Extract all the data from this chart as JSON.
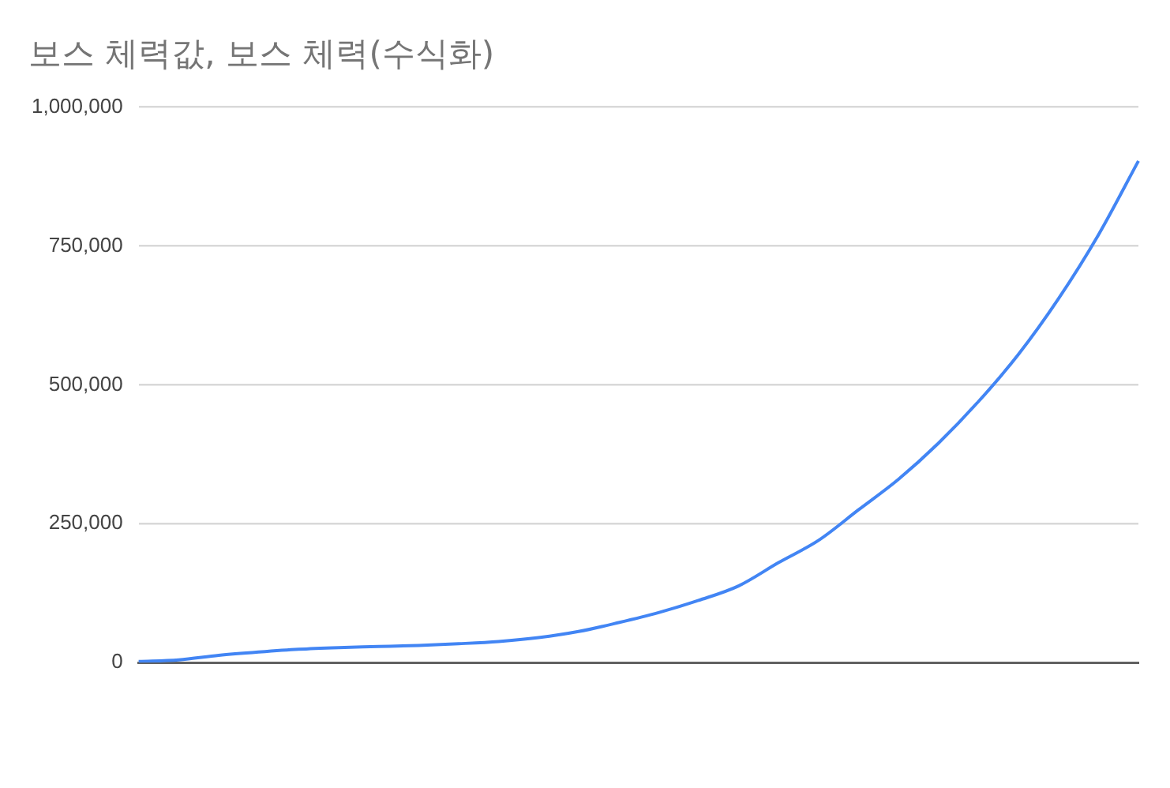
{
  "chart_data": {
    "type": "line",
    "title": "보스 체력값, 보스 체력(수식화)",
    "categories": [
      null,
      null,
      null,
      null,
      null,
      null,
      null,
      null,
      null,
      null,
      null,
      null,
      null,
      null,
      null,
      null,
      null,
      null,
      null,
      null,
      null,
      null,
      null,
      null,
      null,
      null
    ],
    "series": [
      {
        "color": "#4285f4",
        "values": [
          2000,
          5000,
          13000,
          19000,
          24000,
          27000,
          29000,
          31000,
          34000,
          38000,
          45000,
          56000,
          72000,
          90000,
          112000,
          138000,
          180000,
          220000,
          275000,
          330000,
          395000,
          470000,
          555000,
          655000,
          770000,
          903000
        ]
      }
    ],
    "ylim": [
      0,
      1000000
    ],
    "yticks": [
      {
        "value": 0,
        "label": "0"
      },
      {
        "value": 250000,
        "label": "250,000"
      },
      {
        "value": 500000,
        "label": "500,000"
      },
      {
        "value": 750000,
        "label": "750,000"
      },
      {
        "value": 1000000,
        "label": "1,000,000"
      }
    ],
    "grid": "y",
    "legend": false,
    "marker": "none",
    "line_style": "solid"
  }
}
